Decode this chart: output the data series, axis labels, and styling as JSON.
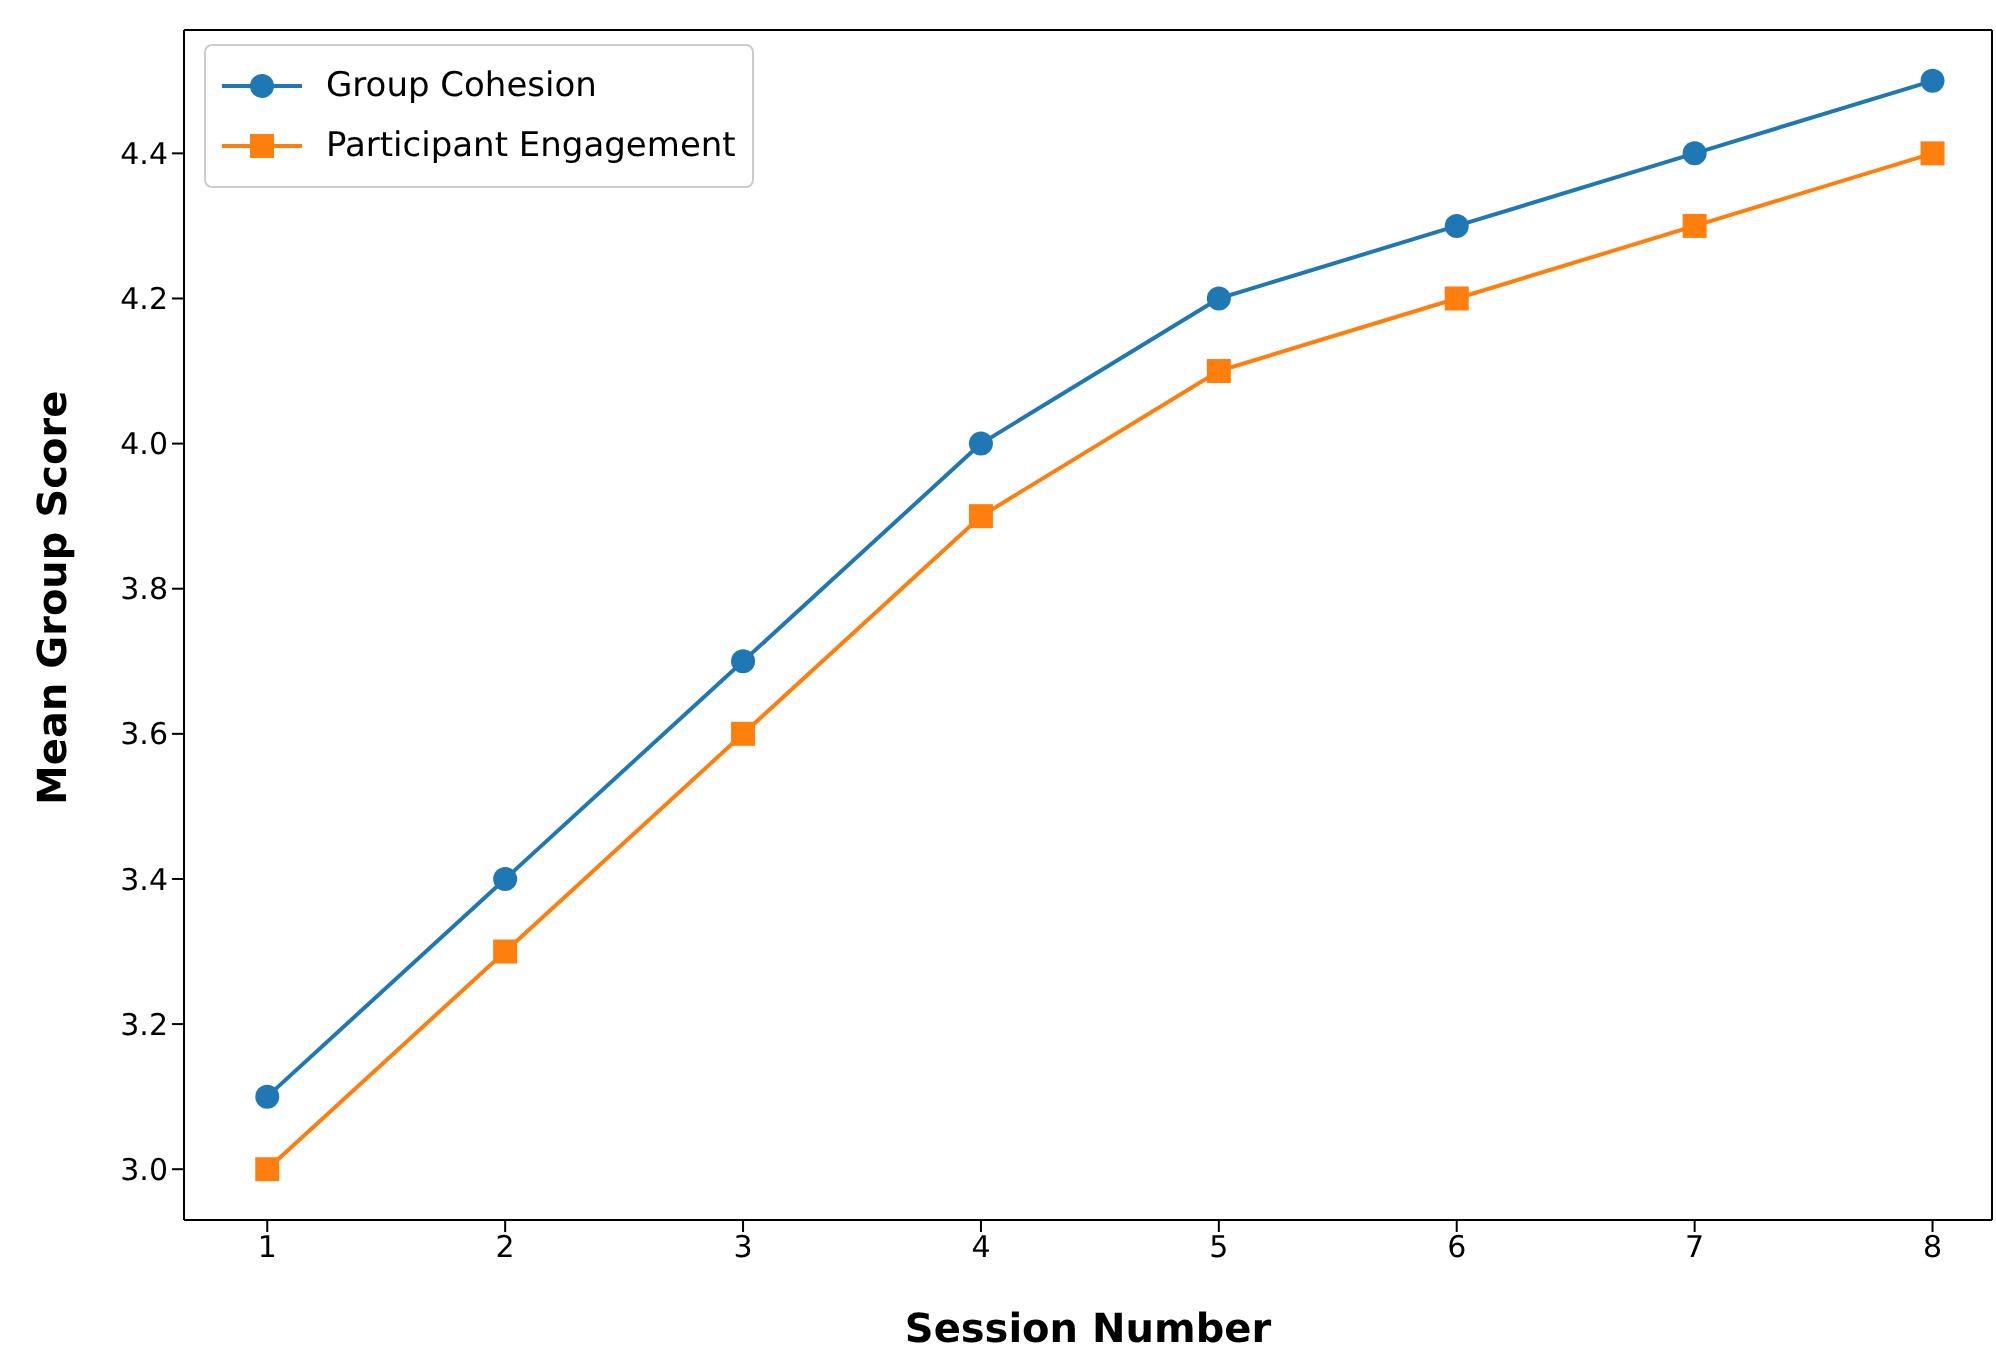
{
  "chart_data": {
    "type": "line",
    "xlabel": "Session Number",
    "ylabel": "Mean Group Score",
    "x": [
      1,
      2,
      3,
      4,
      5,
      6,
      7,
      8
    ],
    "series": [
      {
        "name": "Group Cohesion",
        "color": "#1f77b4",
        "marker": "circle",
        "values": [
          3.1,
          3.4,
          3.7,
          4.0,
          4.2,
          4.3,
          4.4,
          4.5
        ]
      },
      {
        "name": "Participant Engagement",
        "color": "#ff7f0e",
        "marker": "square",
        "values": [
          3.0,
          3.3,
          3.6,
          3.9,
          4.1,
          4.2,
          4.3,
          4.4
        ]
      }
    ],
    "xlim": [
      0.65,
      8.25
    ],
    "xticks": [
      1,
      2,
      3,
      4,
      5,
      6,
      7,
      8
    ],
    "ylim": [
      2.93,
      4.57
    ],
    "yticks": [
      {
        "value": 3.0,
        "label": "3.0"
      },
      {
        "value": 3.2,
        "label": "3.2"
      },
      {
        "value": 3.4,
        "label": "3.4"
      },
      {
        "value": 3.6,
        "label": "3.6"
      },
      {
        "value": 3.8,
        "label": "3.8"
      },
      {
        "value": 4.0,
        "label": "4.0"
      },
      {
        "value": 4.2,
        "label": "4.2"
      },
      {
        "value": 4.4,
        "label": "4.4"
      }
    ],
    "grid": false,
    "legend": "top left",
    "line_style": "solid"
  }
}
